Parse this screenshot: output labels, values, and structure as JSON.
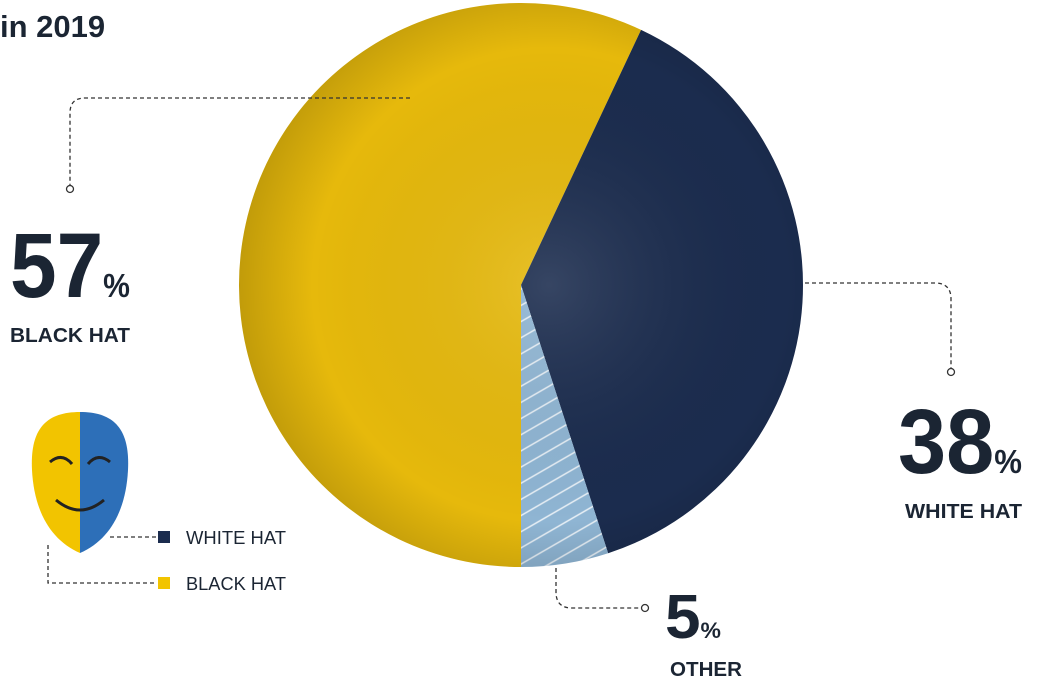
{
  "chart_data": {
    "type": "pie",
    "title": "in 2019",
    "categories": [
      "BLACK HAT",
      "WHITE HAT",
      "OTHER"
    ],
    "values": [
      57,
      38,
      5
    ],
    "value_labels": [
      "57%",
      "38%",
      "5%"
    ],
    "colors": [
      "#e6b90c",
      "#1b2c4e",
      "#8fb5d3"
    ],
    "legend": [
      {
        "name": "WHITE HAT",
        "color": "#1b2c4e"
      },
      {
        "name": "BLACK HAT",
        "color": "#f2c400"
      }
    ]
  }
}
